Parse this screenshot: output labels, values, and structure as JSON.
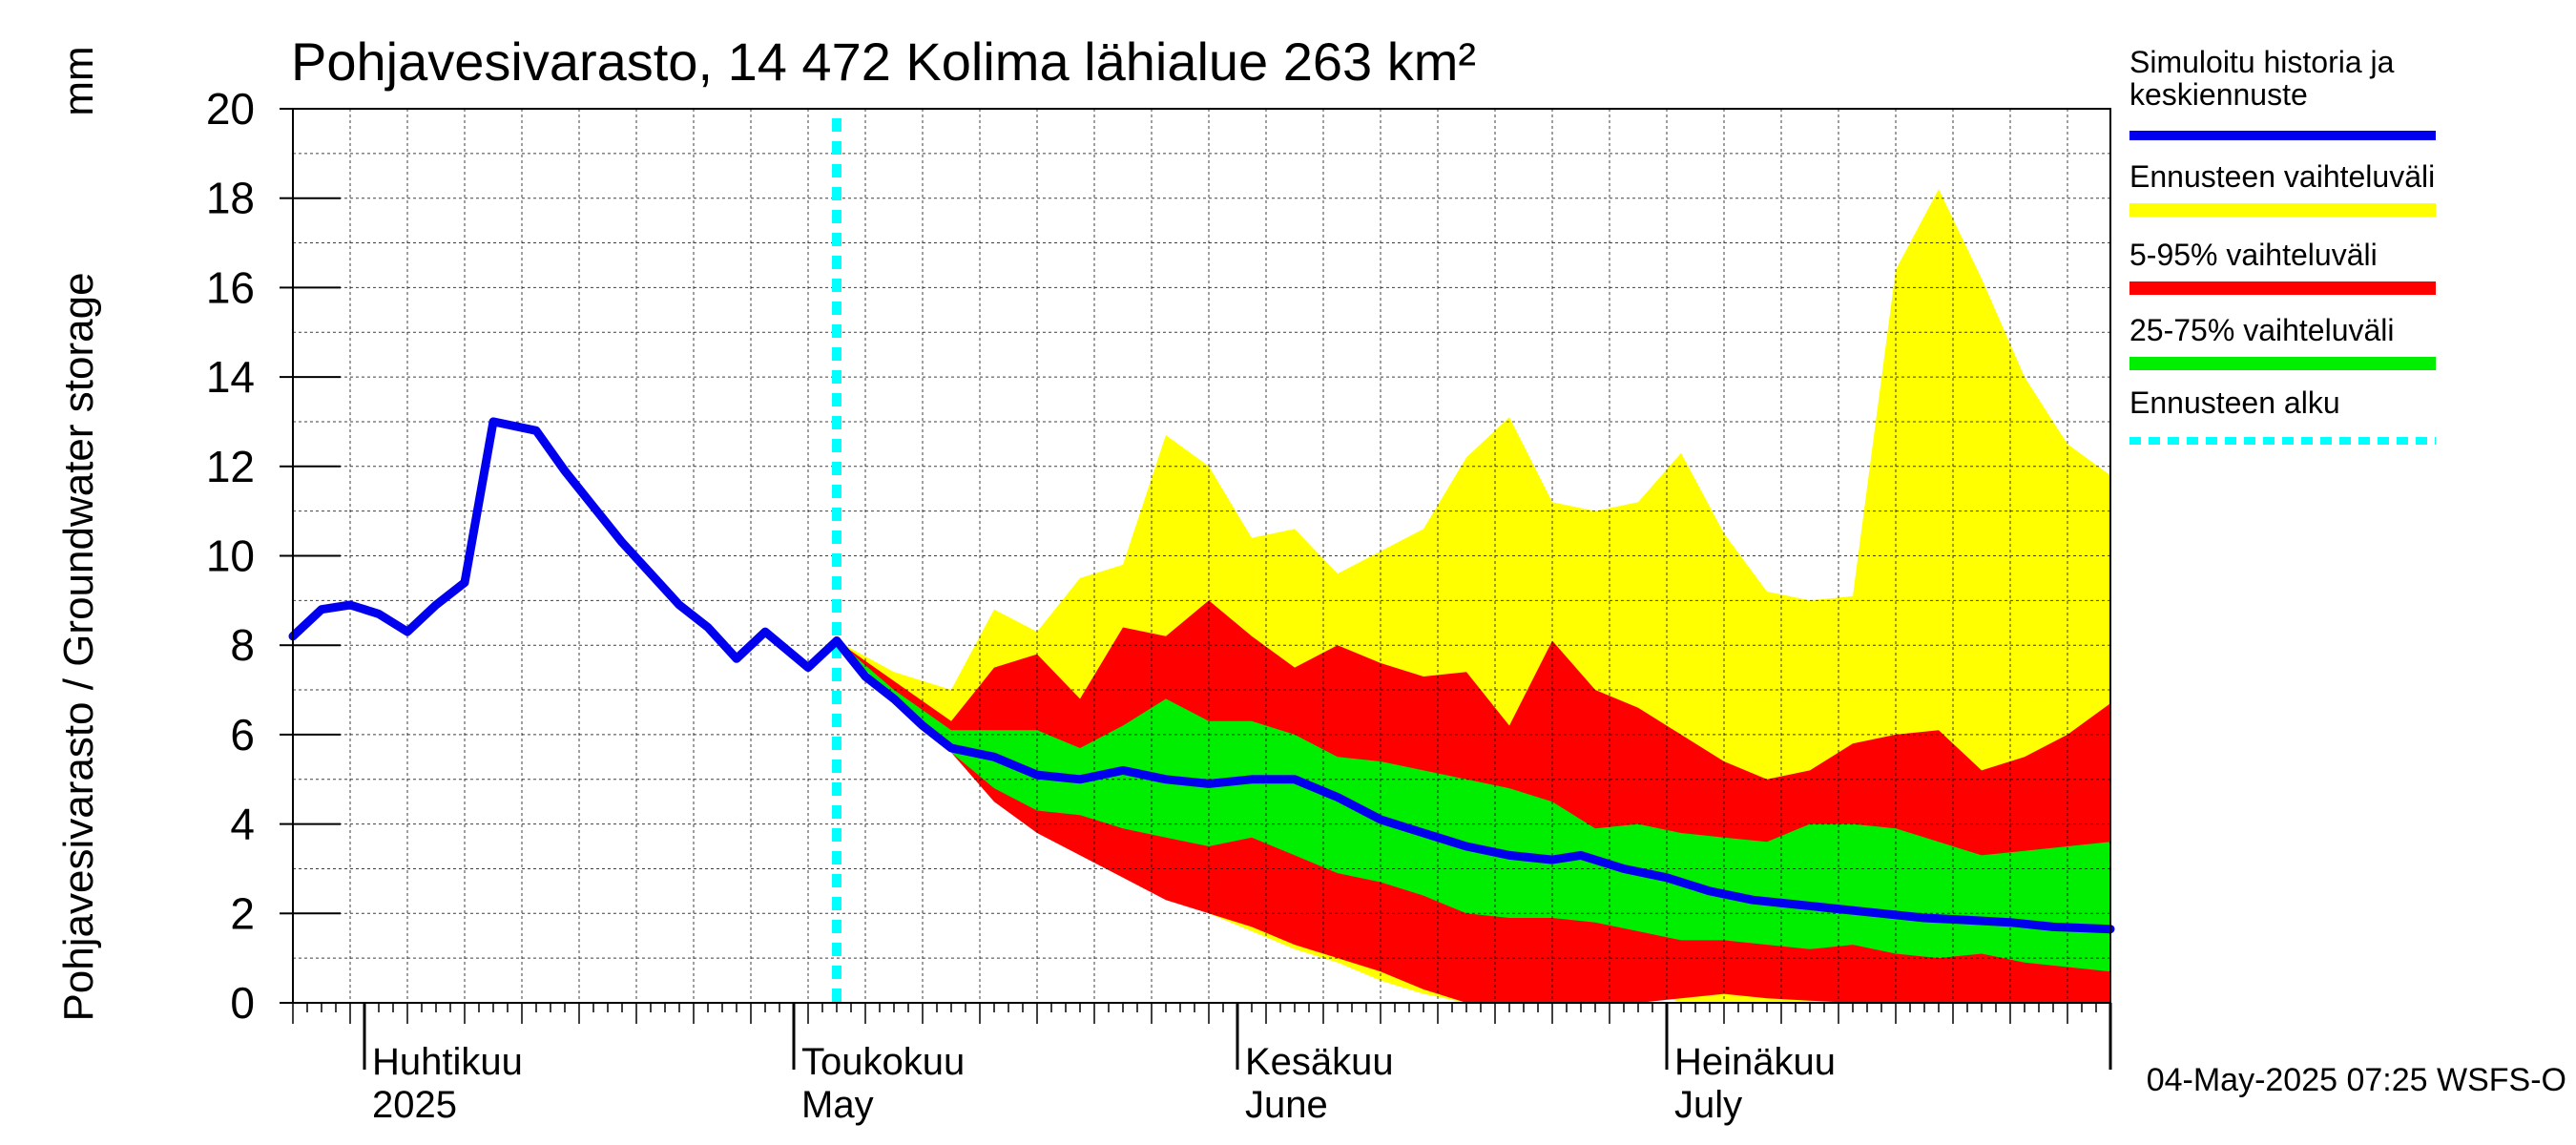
{
  "chart_data": {
    "type": "area",
    "title": "Pohjavesivarasto, 14 472 Kolima lähialue 263 km²",
    "ylabel": "Pohjavesivarasto / Groundwater storage",
    "yunit": "mm",
    "ylim": [
      0,
      20
    ],
    "yticks": [
      "0",
      "2",
      "4",
      "6",
      "8",
      "10",
      "12",
      "14",
      "16",
      "18",
      "20"
    ],
    "xlim": [
      "2025-03-27",
      "2025-08-01"
    ],
    "grid": true,
    "legend_position": "right",
    "month_labels": [
      {
        "date": "2025-04-01",
        "fi": "Huhtikuu",
        "en": "2025"
      },
      {
        "date": "2025-05-01",
        "fi": "Toukokuu",
        "en": "May"
      },
      {
        "date": "2025-06-01",
        "fi": "Kesäkuu",
        "en": "June"
      },
      {
        "date": "2025-07-01",
        "fi": "Heinäkuu",
        "en": "July"
      }
    ],
    "forecast_start": "2025-05-04",
    "colors": {
      "history": "#0000ee",
      "range": "#ffff00",
      "p5_95": "#ff0000",
      "p25_75": "#00ee00",
      "forecast_start": "#00ffff"
    },
    "legend": [
      {
        "key": "history",
        "label": "Simuloitu historia ja keskiennuste"
      },
      {
        "key": "range",
        "label": "Ennusteen vaihteluväli"
      },
      {
        "key": "p5_95",
        "label": "5-95% vaihteluväli"
      },
      {
        "key": "p25_75",
        "label": "25-75% vaihteluväli"
      },
      {
        "key": "forecast_start",
        "label": "Ennusteen alku"
      }
    ],
    "series": [
      {
        "key": "history",
        "name": "Simuloitu historia ja keskiennuste",
        "x": [
          "2025-03-27",
          "2025-03-29",
          "2025-03-31",
          "2025-04-02",
          "2025-04-04",
          "2025-04-06",
          "2025-04-08",
          "2025-04-10",
          "2025-04-13",
          "2025-04-15",
          "2025-04-17",
          "2025-04-19",
          "2025-04-21",
          "2025-04-23",
          "2025-04-25",
          "2025-04-27",
          "2025-04-29",
          "2025-05-02",
          "2025-05-04",
          "2025-05-06",
          "2025-05-08",
          "2025-05-10",
          "2025-05-12",
          "2025-05-15",
          "2025-05-18",
          "2025-05-21",
          "2025-05-24",
          "2025-05-27",
          "2025-05-30",
          "2025-06-02",
          "2025-06-05",
          "2025-06-08",
          "2025-06-11",
          "2025-06-14",
          "2025-06-17",
          "2025-06-20",
          "2025-06-23",
          "2025-06-25",
          "2025-06-28",
          "2025-07-01",
          "2025-07-04",
          "2025-07-07",
          "2025-07-10",
          "2025-07-13",
          "2025-07-16",
          "2025-07-19",
          "2025-07-22",
          "2025-07-25",
          "2025-07-28",
          "2025-08-01"
        ],
        "values": [
          8.2,
          8.8,
          8.9,
          8.7,
          8.3,
          8.9,
          9.4,
          13.0,
          12.8,
          11.9,
          11.1,
          10.3,
          9.6,
          8.9,
          8.4,
          7.7,
          8.3,
          7.5,
          8.1,
          7.3,
          6.8,
          6.2,
          5.7,
          5.5,
          5.1,
          5.0,
          5.2,
          5.0,
          4.9,
          5.0,
          5.0,
          4.6,
          4.1,
          3.8,
          3.5,
          3.3,
          3.2,
          3.3,
          3.0,
          2.8,
          2.5,
          2.3,
          2.2,
          2.1,
          2.0,
          1.9,
          1.85,
          1.8,
          1.7,
          1.65
        ]
      },
      {
        "key": "range",
        "name": "Ennusteen vaihteluväli",
        "x": [
          "2025-05-04",
          "2025-05-08",
          "2025-05-12",
          "2025-05-15",
          "2025-05-18",
          "2025-05-21",
          "2025-05-24",
          "2025-05-27",
          "2025-05-30",
          "2025-06-02",
          "2025-06-05",
          "2025-06-08",
          "2025-06-11",
          "2025-06-14",
          "2025-06-17",
          "2025-06-20",
          "2025-06-23",
          "2025-06-26",
          "2025-06-29",
          "2025-07-02",
          "2025-07-05",
          "2025-07-08",
          "2025-07-11",
          "2025-07-14",
          "2025-07-17",
          "2025-07-20",
          "2025-07-23",
          "2025-07-26",
          "2025-07-29",
          "2025-08-01"
        ],
        "upper": [
          8.1,
          7.4,
          7.0,
          8.8,
          8.3,
          9.5,
          9.8,
          12.7,
          12.0,
          10.4,
          10.6,
          9.6,
          10.1,
          10.6,
          12.2,
          13.1,
          11.2,
          11.0,
          11.2,
          12.3,
          10.5,
          9.2,
          9.0,
          9.1,
          16.4,
          18.2,
          16.2,
          14.0,
          12.5,
          11.8
        ],
        "lower": [
          8.1,
          6.9,
          5.8,
          4.8,
          4.0,
          3.3,
          2.9,
          2.4,
          2.0,
          1.6,
          1.2,
          0.9,
          0.5,
          0.2,
          0.0,
          0.0,
          0.6,
          0.5,
          0.4,
          0.0,
          0.0,
          0.0,
          0.0,
          0.0,
          0.0,
          0.0,
          0.0,
          0.0,
          0.0,
          0.0
        ]
      },
      {
        "key": "p5_95",
        "name": "5-95% vaihteluväli",
        "x": [
          "2025-05-04",
          "2025-05-08",
          "2025-05-12",
          "2025-05-15",
          "2025-05-18",
          "2025-05-21",
          "2025-05-24",
          "2025-05-27",
          "2025-05-30",
          "2025-06-02",
          "2025-06-05",
          "2025-06-08",
          "2025-06-11",
          "2025-06-14",
          "2025-06-17",
          "2025-06-20",
          "2025-06-23",
          "2025-06-26",
          "2025-06-29",
          "2025-07-02",
          "2025-07-05",
          "2025-07-08",
          "2025-07-11",
          "2025-07-14",
          "2025-07-17",
          "2025-07-20",
          "2025-07-23",
          "2025-07-26",
          "2025-07-29",
          "2025-08-01"
        ],
        "upper": [
          8.1,
          7.2,
          6.3,
          7.5,
          7.8,
          6.8,
          8.4,
          8.2,
          9.0,
          8.2,
          7.5,
          8.0,
          7.6,
          7.3,
          7.4,
          6.2,
          8.1,
          7.0,
          6.6,
          6.0,
          5.4,
          5.0,
          5.2,
          5.8,
          6.0,
          6.1,
          5.2,
          5.5,
          6.0,
          6.7
        ],
        "lower": [
          8.1,
          6.8,
          5.6,
          4.5,
          3.8,
          3.3,
          2.8,
          2.3,
          2.0,
          1.7,
          1.3,
          1.0,
          0.7,
          0.3,
          0.0,
          0.0,
          0.0,
          0.0,
          0.0,
          0.1,
          0.2,
          0.1,
          0.05,
          0.0,
          0.0,
          0.0,
          0.0,
          0.0,
          0.0,
          0.0
        ]
      },
      {
        "key": "p25_75",
        "name": "25-75% vaihteluväli",
        "x": [
          "2025-05-04",
          "2025-05-08",
          "2025-05-12",
          "2025-05-15",
          "2025-05-18",
          "2025-05-21",
          "2025-05-24",
          "2025-05-27",
          "2025-05-30",
          "2025-06-02",
          "2025-06-05",
          "2025-06-08",
          "2025-06-11",
          "2025-06-14",
          "2025-06-17",
          "2025-06-20",
          "2025-06-23",
          "2025-06-26",
          "2025-06-29",
          "2025-07-02",
          "2025-07-05",
          "2025-07-08",
          "2025-07-11",
          "2025-07-14",
          "2025-07-17",
          "2025-07-20",
          "2025-07-23",
          "2025-07-26",
          "2025-07-29",
          "2025-08-01"
        ],
        "upper": [
          8.1,
          7.0,
          6.1,
          6.1,
          6.1,
          5.7,
          6.2,
          6.8,
          6.3,
          6.3,
          6.0,
          5.5,
          5.4,
          5.2,
          5.0,
          4.8,
          4.5,
          3.9,
          4.0,
          3.8,
          3.7,
          3.6,
          4.0,
          4.0,
          3.9,
          3.6,
          3.3,
          3.4,
          3.5,
          3.6
        ],
        "lower": [
          8.1,
          6.8,
          5.6,
          4.8,
          4.3,
          4.2,
          3.9,
          3.7,
          3.5,
          3.7,
          3.3,
          2.9,
          2.7,
          2.4,
          2.0,
          1.9,
          1.9,
          1.8,
          1.6,
          1.4,
          1.4,
          1.3,
          1.2,
          1.3,
          1.1,
          1.0,
          1.1,
          0.9,
          0.8,
          0.7
        ]
      }
    ]
  },
  "footer": {
    "timestamp": "04-May-2025 07:25 WSFS-O"
  }
}
